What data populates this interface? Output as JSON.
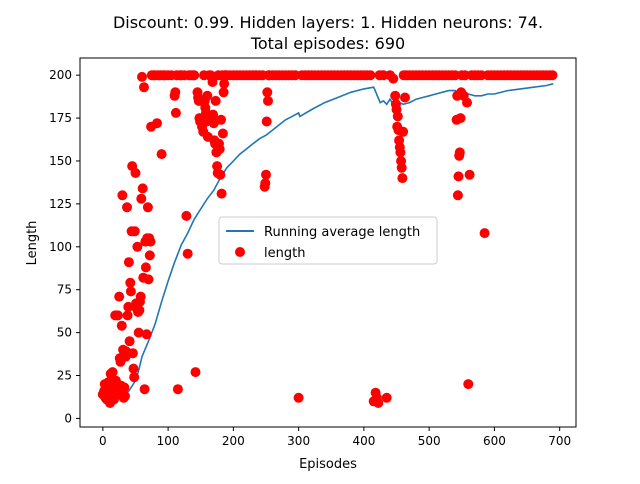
{
  "chart_data": {
    "type": "scatter",
    "title_line1": "Discount: 0.99. Hidden layers: 1. Hidden neurons: 74.",
    "title_line2": "Total episodes: 690",
    "xlabel": "Episodes",
    "ylabel": "Length",
    "xlim": [
      -35,
      725
    ],
    "ylim": [
      -5,
      210
    ],
    "xticks": [
      0,
      100,
      200,
      300,
      400,
      500,
      600,
      700
    ],
    "yticks": [
      0,
      25,
      50,
      75,
      100,
      125,
      150,
      175,
      200
    ],
    "grid": false,
    "legend_position": "center",
    "colors": {
      "line": "#1f77b4",
      "points": "#ff0000"
    },
    "series": [
      {
        "name": "Running average length",
        "type": "line",
        "x": [
          0,
          10,
          20,
          30,
          40,
          50,
          55,
          60,
          70,
          80,
          90,
          100,
          110,
          120,
          130,
          140,
          150,
          160,
          170,
          180,
          190,
          200,
          210,
          220,
          230,
          240,
          250,
          260,
          270,
          280,
          290,
          300,
          302,
          320,
          340,
          360,
          380,
          400,
          415,
          425,
          430,
          435,
          440,
          445,
          450,
          455,
          460,
          470,
          480,
          490,
          500,
          510,
          520,
          530,
          540,
          545,
          550,
          560,
          570,
          580,
          590,
          600,
          620,
          640,
          660,
          680,
          690
        ],
        "y": [
          10,
          11,
          12,
          13,
          16,
          22,
          28,
          36,
          45,
          55,
          68,
          80,
          91,
          101,
          108,
          116,
          122,
          128,
          133,
          140,
          146,
          150,
          154,
          157,
          160,
          163,
          165,
          168,
          171,
          174,
          176,
          178,
          176,
          180,
          184,
          187,
          190,
          192,
          193,
          184,
          185,
          183,
          186,
          183,
          186,
          184,
          183,
          184,
          186,
          187,
          188,
          189,
          190,
          191,
          191,
          188,
          190,
          189,
          188,
          188,
          189,
          189,
          191,
          192,
          193,
          194,
          195
        ]
      },
      {
        "name": "length",
        "type": "scatter",
        "points": [
          [
            0,
            14
          ],
          [
            2,
            16
          ],
          [
            3,
            20
          ],
          [
            4,
            12
          ],
          [
            5,
            18
          ],
          [
            6,
            11
          ],
          [
            7,
            13
          ],
          [
            8,
            21
          ],
          [
            9,
            15
          ],
          [
            10,
            17
          ],
          [
            11,
            9
          ],
          [
            12,
            26
          ],
          [
            13,
            14
          ],
          [
            14,
            12
          ],
          [
            15,
            27
          ],
          [
            16,
            19
          ],
          [
            17,
            11
          ],
          [
            18,
            13
          ],
          [
            19,
            60
          ],
          [
            20,
            22
          ],
          [
            21,
            16
          ],
          [
            22,
            18
          ],
          [
            23,
            60
          ],
          [
            24,
            14
          ],
          [
            25,
            71
          ],
          [
            26,
            35
          ],
          [
            27,
            33
          ],
          [
            28,
            19
          ],
          [
            29,
            54
          ],
          [
            30,
            130
          ],
          [
            31,
            40
          ],
          [
            32,
            12
          ],
          [
            33,
            18
          ],
          [
            34,
            13
          ],
          [
            35,
            36
          ],
          [
            36,
            39
          ],
          [
            37,
            123
          ],
          [
            38,
            60
          ],
          [
            39,
            65
          ],
          [
            40,
            91
          ],
          [
            41,
            45
          ],
          [
            42,
            79
          ],
          [
            43,
            74
          ],
          [
            44,
            109
          ],
          [
            45,
            147
          ],
          [
            46,
            38
          ],
          [
            47,
            29
          ],
          [
            48,
            24
          ],
          [
            49,
            109
          ],
          [
            50,
            143
          ],
          [
            51,
            67
          ],
          [
            52,
            64
          ],
          [
            53,
            100
          ],
          [
            54,
            62
          ],
          [
            55,
            50
          ],
          [
            56,
            63
          ],
          [
            57,
            68
          ],
          [
            58,
            71
          ],
          [
            59,
            128
          ],
          [
            60,
            199
          ],
          [
            61,
            134
          ],
          [
            62,
            82
          ],
          [
            63,
            193
          ],
          [
            64,
            17
          ],
          [
            65,
            103
          ],
          [
            66,
            88
          ],
          [
            67,
            49
          ],
          [
            68,
            105
          ],
          [
            69,
            123
          ],
          [
            70,
            81
          ],
          [
            71,
            105
          ],
          [
            72,
            95
          ],
          [
            73,
            103
          ],
          [
            74,
            170
          ],
          [
            75,
            200
          ],
          [
            78,
            200
          ],
          [
            80,
            200
          ],
          [
            83,
            172
          ],
          [
            85,
            200
          ],
          [
            88,
            200
          ],
          [
            90,
            154
          ],
          [
            92,
            200
          ],
          [
            95,
            200
          ],
          [
            100,
            200
          ],
          [
            105,
            200
          ],
          [
            110,
            188
          ],
          [
            111,
            190
          ],
          [
            112,
            178
          ],
          [
            113,
            200
          ],
          [
            115,
            17
          ],
          [
            118,
            200
          ],
          [
            120,
            200
          ],
          [
            125,
            200
          ],
          [
            128,
            118
          ],
          [
            130,
            96
          ],
          [
            132,
            200
          ],
          [
            135,
            200
          ],
          [
            138,
            200
          ],
          [
            140,
            200
          ],
          [
            142,
            27
          ],
          [
            145,
            190
          ],
          [
            146,
            187
          ],
          [
            147,
            185
          ],
          [
            148,
            175
          ],
          [
            149,
            173
          ],
          [
            150,
            185
          ],
          [
            152,
            170
          ],
          [
            154,
            167
          ],
          [
            155,
            200
          ],
          [
            156,
            185
          ],
          [
            157,
            181
          ],
          [
            158,
            178
          ],
          [
            159,
            173
          ],
          [
            160,
            188
          ],
          [
            161,
            164
          ],
          [
            162,
            175
          ],
          [
            163,
            200
          ],
          [
            165,
            200
          ],
          [
            168,
            196
          ],
          [
            169,
            177
          ],
          [
            170,
            172
          ],
          [
            171,
            162
          ],
          [
            172,
            160
          ],
          [
            173,
            185
          ],
          [
            174,
            155
          ],
          [
            175,
            147
          ],
          [
            176,
            143
          ],
          [
            177,
            200
          ],
          [
            178,
            160
          ],
          [
            179,
            157
          ],
          [
            180,
            142
          ],
          [
            181,
            174
          ],
          [
            182,
            131
          ],
          [
            183,
            200
          ],
          [
            184,
            166
          ],
          [
            185,
            190
          ],
          [
            186,
            195
          ],
          [
            187,
            200
          ],
          [
            188,
            200
          ],
          [
            190,
            200
          ],
          [
            195,
            200
          ],
          [
            200,
            200
          ],
          [
            205,
            200
          ],
          [
            210,
            200
          ],
          [
            215,
            200
          ],
          [
            220,
            200
          ],
          [
            225,
            200
          ],
          [
            230,
            200
          ],
          [
            235,
            200
          ],
          [
            240,
            200
          ],
          [
            245,
            200
          ],
          [
            248,
            135
          ],
          [
            249,
            137
          ],
          [
            250,
            142
          ],
          [
            251,
            173
          ],
          [
            252,
            190
          ],
          [
            253,
            185
          ],
          [
            254,
            200
          ],
          [
            255,
            200
          ],
          [
            260,
            200
          ],
          [
            265,
            200
          ],
          [
            270,
            200
          ],
          [
            275,
            200
          ],
          [
            280,
            200
          ],
          [
            285,
            200
          ],
          [
            290,
            200
          ],
          [
            295,
            200
          ],
          [
            300,
            12
          ],
          [
            305,
            200
          ],
          [
            310,
            200
          ],
          [
            315,
            200
          ],
          [
            320,
            200
          ],
          [
            325,
            200
          ],
          [
            330,
            200
          ],
          [
            335,
            200
          ],
          [
            340,
            200
          ],
          [
            345,
            200
          ],
          [
            350,
            200
          ],
          [
            355,
            200
          ],
          [
            360,
            200
          ],
          [
            365,
            200
          ],
          [
            370,
            200
          ],
          [
            375,
            200
          ],
          [
            380,
            200
          ],
          [
            385,
            200
          ],
          [
            390,
            200
          ],
          [
            395,
            200
          ],
          [
            400,
            200
          ],
          [
            405,
            200
          ],
          [
            410,
            200
          ],
          [
            415,
            10
          ],
          [
            418,
            15
          ],
          [
            420,
            12
          ],
          [
            422,
            9
          ],
          [
            424,
            200
          ],
          [
            430,
            200
          ],
          [
            435,
            12
          ],
          [
            440,
            200
          ],
          [
            445,
            198
          ],
          [
            448,
            188
          ],
          [
            449,
            183
          ],
          [
            450,
            180
          ],
          [
            451,
            170
          ],
          [
            452,
            176
          ],
          [
            453,
            168
          ],
          [
            454,
            162
          ],
          [
            455,
            158
          ],
          [
            456,
            155
          ],
          [
            457,
            150
          ],
          [
            458,
            146
          ],
          [
            459,
            140
          ],
          [
            460,
            167
          ],
          [
            461,
            200
          ],
          [
            463,
            187
          ],
          [
            465,
            200
          ],
          [
            470,
            200
          ],
          [
            475,
            200
          ],
          [
            480,
            200
          ],
          [
            485,
            200
          ],
          [
            490,
            200
          ],
          [
            495,
            200
          ],
          [
            500,
            200
          ],
          [
            505,
            200
          ],
          [
            510,
            200
          ],
          [
            515,
            200
          ],
          [
            520,
            200
          ],
          [
            525,
            200
          ],
          [
            530,
            200
          ],
          [
            535,
            200
          ],
          [
            540,
            200
          ],
          [
            542,
            174
          ],
          [
            543,
            188
          ],
          [
            544,
            130
          ],
          [
            545,
            141
          ],
          [
            546,
            153
          ],
          [
            547,
            155
          ],
          [
            548,
            175
          ],
          [
            549,
            190
          ],
          [
            550,
            200
          ],
          [
            553,
            188
          ],
          [
            555,
            200
          ],
          [
            558,
            184
          ],
          [
            560,
            20
          ],
          [
            562,
            142
          ],
          [
            565,
            200
          ],
          [
            570,
            200
          ],
          [
            575,
            200
          ],
          [
            580,
            200
          ],
          [
            585,
            108
          ],
          [
            590,
            200
          ],
          [
            595,
            200
          ],
          [
            600,
            200
          ],
          [
            605,
            200
          ],
          [
            610,
            200
          ],
          [
            615,
            200
          ],
          [
            620,
            200
          ],
          [
            625,
            200
          ],
          [
            630,
            200
          ],
          [
            635,
            200
          ],
          [
            640,
            200
          ],
          [
            645,
            200
          ],
          [
            650,
            200
          ],
          [
            655,
            200
          ],
          [
            660,
            200
          ],
          [
            665,
            200
          ],
          [
            670,
            200
          ],
          [
            675,
            200
          ],
          [
            680,
            200
          ],
          [
            685,
            200
          ],
          [
            689,
            200
          ]
        ]
      }
    ]
  }
}
